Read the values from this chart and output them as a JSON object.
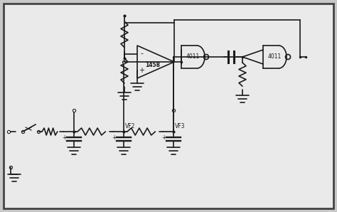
{
  "bg_color": "#eaeaea",
  "border_color": "#444444",
  "line_color": "#1a1a1a",
  "line_width": 1.2,
  "fig_bg": "#c8c8c8"
}
